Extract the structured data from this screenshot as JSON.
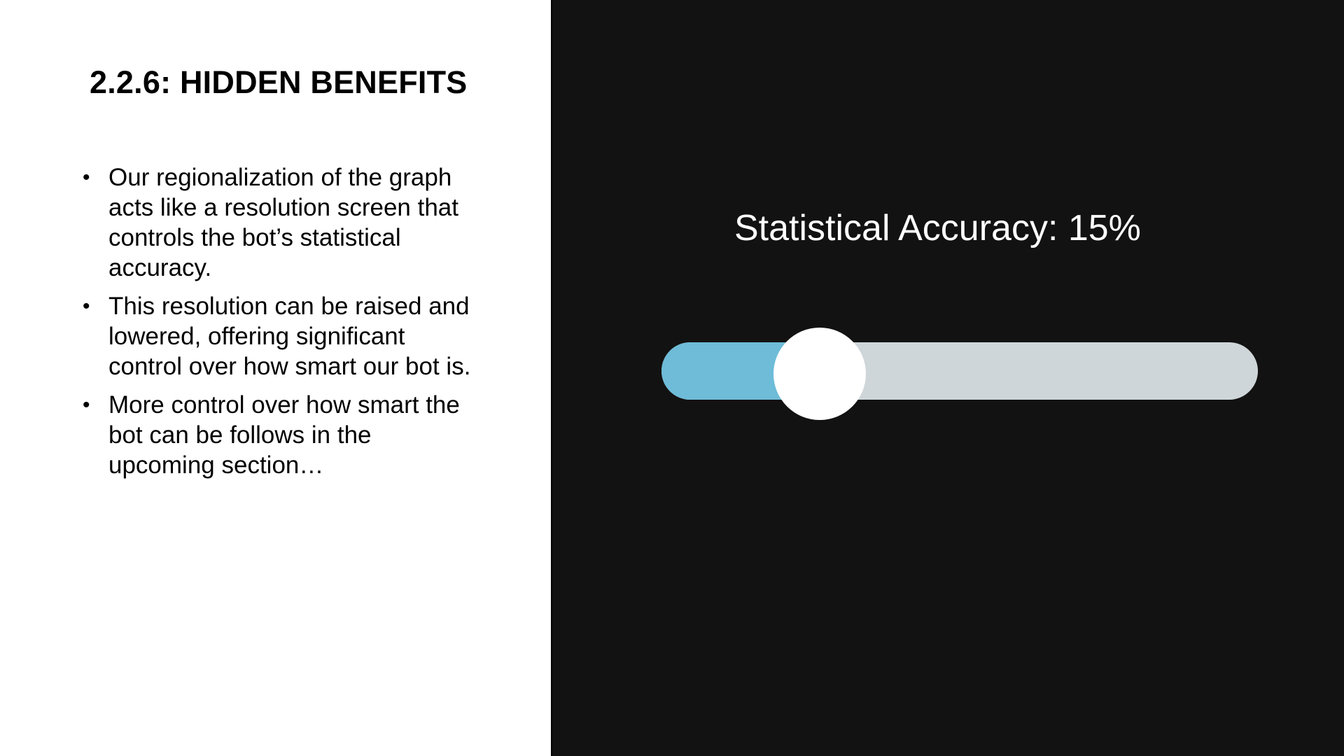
{
  "slide": {
    "title": "2.2.6: HIDDEN BENEFITS",
    "bullets": [
      "Our regionalization of the graph acts like a resolution screen that controls the bot’s statistical accuracy.",
      "This resolution can be raised and lowered, offering significant control over how smart our bot is.",
      "More control over how smart the bot can be follows in the upcoming section…"
    ]
  },
  "accuracy": {
    "label": "Statistical Accuracy: 15%",
    "value_percent": 15
  },
  "colors": {
    "panel_background": "#121212",
    "track": "#cfd6d9",
    "fill": "#6ebcd8",
    "thumb": "#ffffff"
  }
}
